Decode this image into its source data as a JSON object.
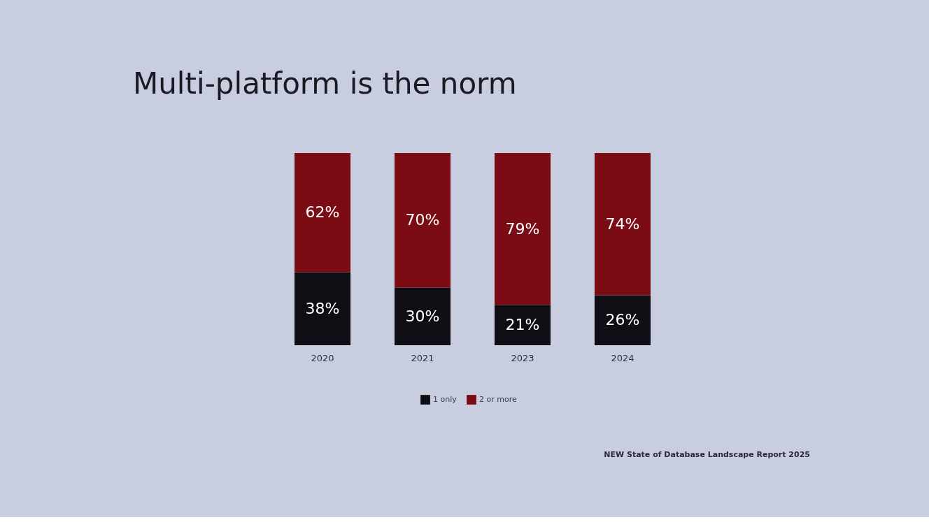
{
  "chart_data": {
    "type": "bar",
    "title": "Multi-platform is the norm",
    "categories": [
      "2020",
      "2021",
      "2023",
      "2024"
    ],
    "stacked": true,
    "series": [
      {
        "name": "1 only",
        "color": "#100e15",
        "values": [
          38,
          30,
          21,
          26
        ],
        "value_labels": [
          "38%",
          "30%",
          "21%",
          "26%"
        ]
      },
      {
        "name": "2 or more",
        "color": "#7b0c14",
        "values": [
          62,
          70,
          79,
          74
        ],
        "value_labels": [
          "62%",
          "70%",
          "79%",
          "74%"
        ]
      }
    ],
    "legend": "bottom",
    "grid": false,
    "tick_labels": "x",
    "annotations": [
      "NEW State of Database Landscape Report 2025"
    ]
  }
}
